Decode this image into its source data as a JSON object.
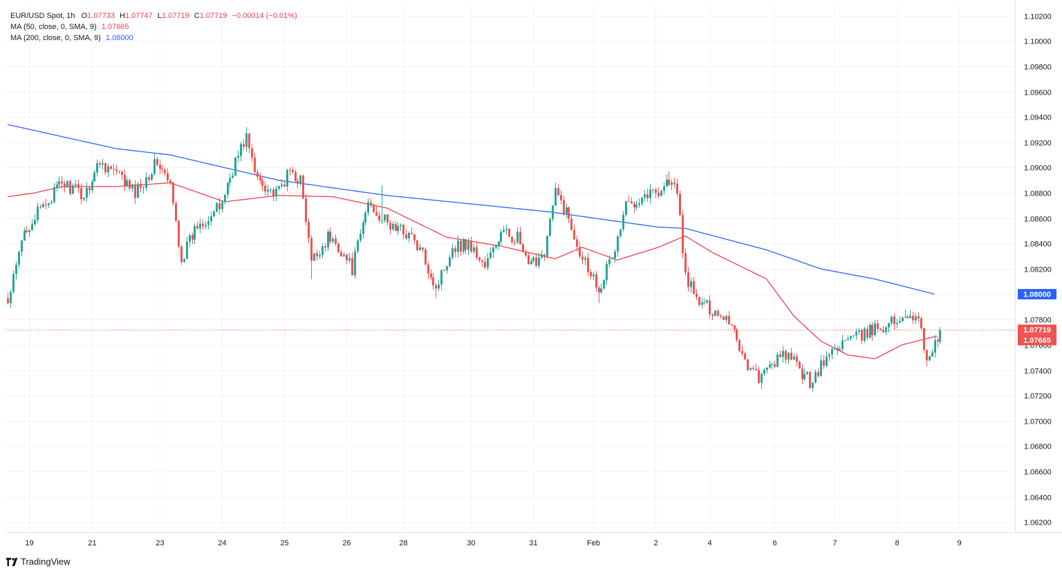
{
  "legend": {
    "symbol": "EUR/USD Spot, 1h",
    "o_label": "O",
    "o_value": "1.07733",
    "h_label": "H",
    "h_value": "1.07747",
    "l_label": "L",
    "l_value": "1.07719",
    "c_label": "C",
    "c_value": "1.07719",
    "change": "−0.00014 (−0.01%)",
    "ma50_label": "MA (50, close, 0, SMA, 9)",
    "ma50_value": "1.07665",
    "ma200_label": "MA (200, close, 0, SMA, 9)",
    "ma200_value": "1.08000"
  },
  "brand": {
    "name": "TradingView",
    "icon": "tradingview-logo-icon"
  },
  "colors": {
    "up": "#26a69a",
    "down": "#ef5350",
    "ma50": "#ef3e4a",
    "ma200": "#2962ff",
    "grid": "#f0f3fa",
    "axis_text": "#131722",
    "price_line": "#ef5350"
  },
  "chart_data": {
    "type": "candlestick",
    "y_ticks": [
      "1.10200",
      "1.10000",
      "1.09800",
      "1.09600",
      "1.09400",
      "1.09200",
      "1.09000",
      "1.08800",
      "1.08600",
      "1.08400",
      "1.08200",
      "1.08000",
      "1.07800",
      "1.07600",
      "1.07400",
      "1.07200",
      "1.07000",
      "1.06800",
      "1.06600",
      "1.06400",
      "1.06200"
    ],
    "ylim": [
      1.0612,
      1.1028
    ],
    "x_labels": [
      "19",
      "21",
      "23",
      "24",
      "25",
      "26",
      "28",
      "30",
      "31",
      "Feb",
      "2",
      "4",
      "6",
      "7",
      "8",
      "9"
    ],
    "price_badges": [
      {
        "value": "1.08000",
        "color": "#2962ff"
      },
      {
        "value": "1.07719",
        "color": "#ef5350"
      },
      {
        "value": "1.07665",
        "color": "#ef5350"
      }
    ],
    "last_price": 1.07719,
    "close_path": [
      [
        0,
        1.0792
      ],
      [
        6,
        1.085
      ],
      [
        14,
        1.0872
      ],
      [
        20,
        1.0888
      ],
      [
        28,
        1.0878
      ],
      [
        34,
        1.0905
      ],
      [
        40,
        1.0895
      ],
      [
        47,
        1.088
      ],
      [
        55,
        1.0905
      ],
      [
        60,
        1.0885
      ],
      [
        64,
        1.0828
      ],
      [
        70,
        1.0855
      ],
      [
        78,
        1.0868
      ],
      [
        84,
        1.0905
      ],
      [
        88,
        1.0925
      ],
      [
        91,
        1.0895
      ],
      [
        99,
        1.0878
      ],
      [
        104,
        1.0897
      ],
      [
        108,
        1.089
      ],
      [
        112,
        1.0825
      ],
      [
        118,
        1.0845
      ],
      [
        122,
        1.0838
      ],
      [
        127,
        1.082
      ],
      [
        133,
        1.0873
      ],
      [
        140,
        1.0855
      ],
      [
        148,
        1.0848
      ],
      [
        154,
        1.0827
      ],
      [
        158,
        1.0805
      ],
      [
        164,
        1.0838
      ],
      [
        170,
        1.084
      ],
      [
        176,
        1.0822
      ],
      [
        182,
        1.0848
      ],
      [
        188,
        1.0845
      ],
      [
        192,
        1.082
      ],
      [
        198,
        1.0835
      ],
      [
        202,
        1.088
      ],
      [
        206,
        1.0865
      ],
      [
        211,
        1.0835
      ],
      [
        218,
        1.0805
      ],
      [
        224,
        1.0835
      ],
      [
        228,
        1.087
      ],
      [
        234,
        1.0878
      ],
      [
        240,
        1.0882
      ],
      [
        244,
        1.089
      ],
      [
        247,
        1.088
      ],
      [
        250,
        1.0815
      ],
      [
        254,
        1.0795
      ],
      [
        258,
        1.079
      ],
      [
        264,
        1.0783
      ],
      [
        267,
        1.0778
      ],
      [
        270,
        1.0758
      ],
      [
        274,
        1.074
      ],
      [
        278,
        1.0733
      ],
      [
        282,
        1.0746
      ],
      [
        288,
        1.0752
      ],
      [
        292,
        1.074
      ],
      [
        296,
        1.0731
      ],
      [
        300,
        1.0743
      ],
      [
        304,
        1.0755
      ],
      [
        308,
        1.0762
      ],
      [
        312,
        1.0765
      ],
      [
        316,
        1.0768
      ],
      [
        320,
        1.0773
      ],
      [
        324,
        1.0776
      ],
      [
        328,
        1.0779
      ],
      [
        332,
        1.0786
      ],
      [
        336,
        1.0778
      ],
      [
        339,
        1.075
      ],
      [
        342,
        1.076
      ],
      [
        344,
        1.0772
      ]
    ],
    "spikes": [
      {
        "i": 88,
        "h": 1.0932
      },
      {
        "i": 112,
        "l": 1.0812
      },
      {
        "i": 138,
        "h": 1.0886
      },
      {
        "i": 158,
        "l": 1.0797
      },
      {
        "i": 203,
        "h": 1.0887
      },
      {
        "i": 218,
        "l": 1.0793
      },
      {
        "i": 244,
        "h": 1.0897
      },
      {
        "i": 278,
        "l": 1.0725
      },
      {
        "i": 297,
        "l": 1.0723
      },
      {
        "i": 331,
        "h": 1.0788
      },
      {
        "i": 339,
        "l": 1.0743
      },
      {
        "i": 64,
        "l": 1.0823
      }
    ],
    "ma200": [
      [
        0,
        1.0934
      ],
      [
        40,
        1.0915
      ],
      [
        60,
        1.091
      ],
      [
        100,
        1.089
      ],
      [
        140,
        1.0878
      ],
      [
        200,
        1.0865
      ],
      [
        240,
        1.0853
      ],
      [
        250,
        1.0852
      ],
      [
        280,
        1.0835
      ],
      [
        300,
        1.082
      ],
      [
        320,
        1.0812
      ],
      [
        342,
        1.08
      ]
    ],
    "ma50": [
      [
        0,
        1.0877
      ],
      [
        10,
        1.088
      ],
      [
        20,
        1.0885
      ],
      [
        40,
        1.0885
      ],
      [
        60,
        1.0888
      ],
      [
        80,
        1.0873
      ],
      [
        100,
        1.0878
      ],
      [
        120,
        1.0877
      ],
      [
        140,
        1.0868
      ],
      [
        162,
        1.0845
      ],
      [
        182,
        1.0838
      ],
      [
        202,
        1.0828
      ],
      [
        212,
        1.0837
      ],
      [
        225,
        1.0827
      ],
      [
        240,
        1.0837
      ],
      [
        250,
        1.0846
      ],
      [
        260,
        1.0833
      ],
      [
        280,
        1.0812
      ],
      [
        290,
        1.0783
      ],
      [
        300,
        1.0763
      ],
      [
        310,
        1.0752
      ],
      [
        320,
        1.0749
      ],
      [
        330,
        1.076
      ],
      [
        343,
        1.0767
      ]
    ],
    "grid": true,
    "legend_position": "top-left"
  }
}
